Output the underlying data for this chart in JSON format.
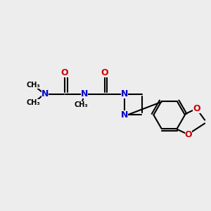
{
  "bg_color": "#ededee",
  "atom_color_N": "#0000cc",
  "atom_color_O": "#cc0000",
  "bond_color": "#000000",
  "bond_width": 1.5,
  "figsize": [
    3.0,
    3.0
  ],
  "dpi": 100,
  "xlim": [
    0,
    10
  ],
  "ylim": [
    0,
    10
  ]
}
